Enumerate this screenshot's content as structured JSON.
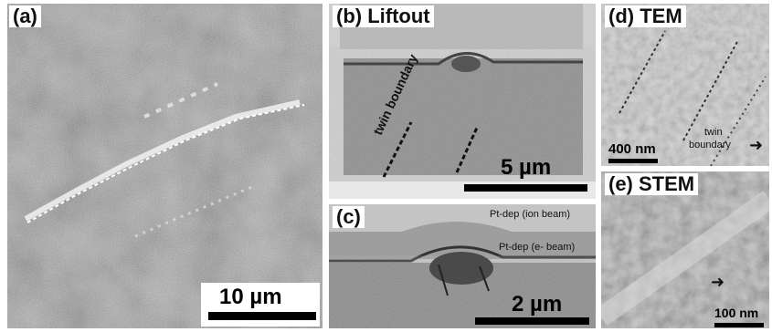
{
  "panels": {
    "a": {
      "label": "(a)",
      "scale": "10 µm"
    },
    "b": {
      "label": "(b) Liftout",
      "scale": "5 µm",
      "twin": "twin boundary"
    },
    "c": {
      "label": "(c)",
      "scale": "2 µm",
      "pt_ion": "Pt-dep (ion beam)",
      "pt_e": "Pt-dep (e- beam)"
    },
    "d": {
      "label": "(d) TEM",
      "scale": "400 nm",
      "twin_line1": "twin",
      "twin_line2": "boundary"
    },
    "e": {
      "label": "(e) STEM",
      "scale": "100 nm"
    }
  }
}
